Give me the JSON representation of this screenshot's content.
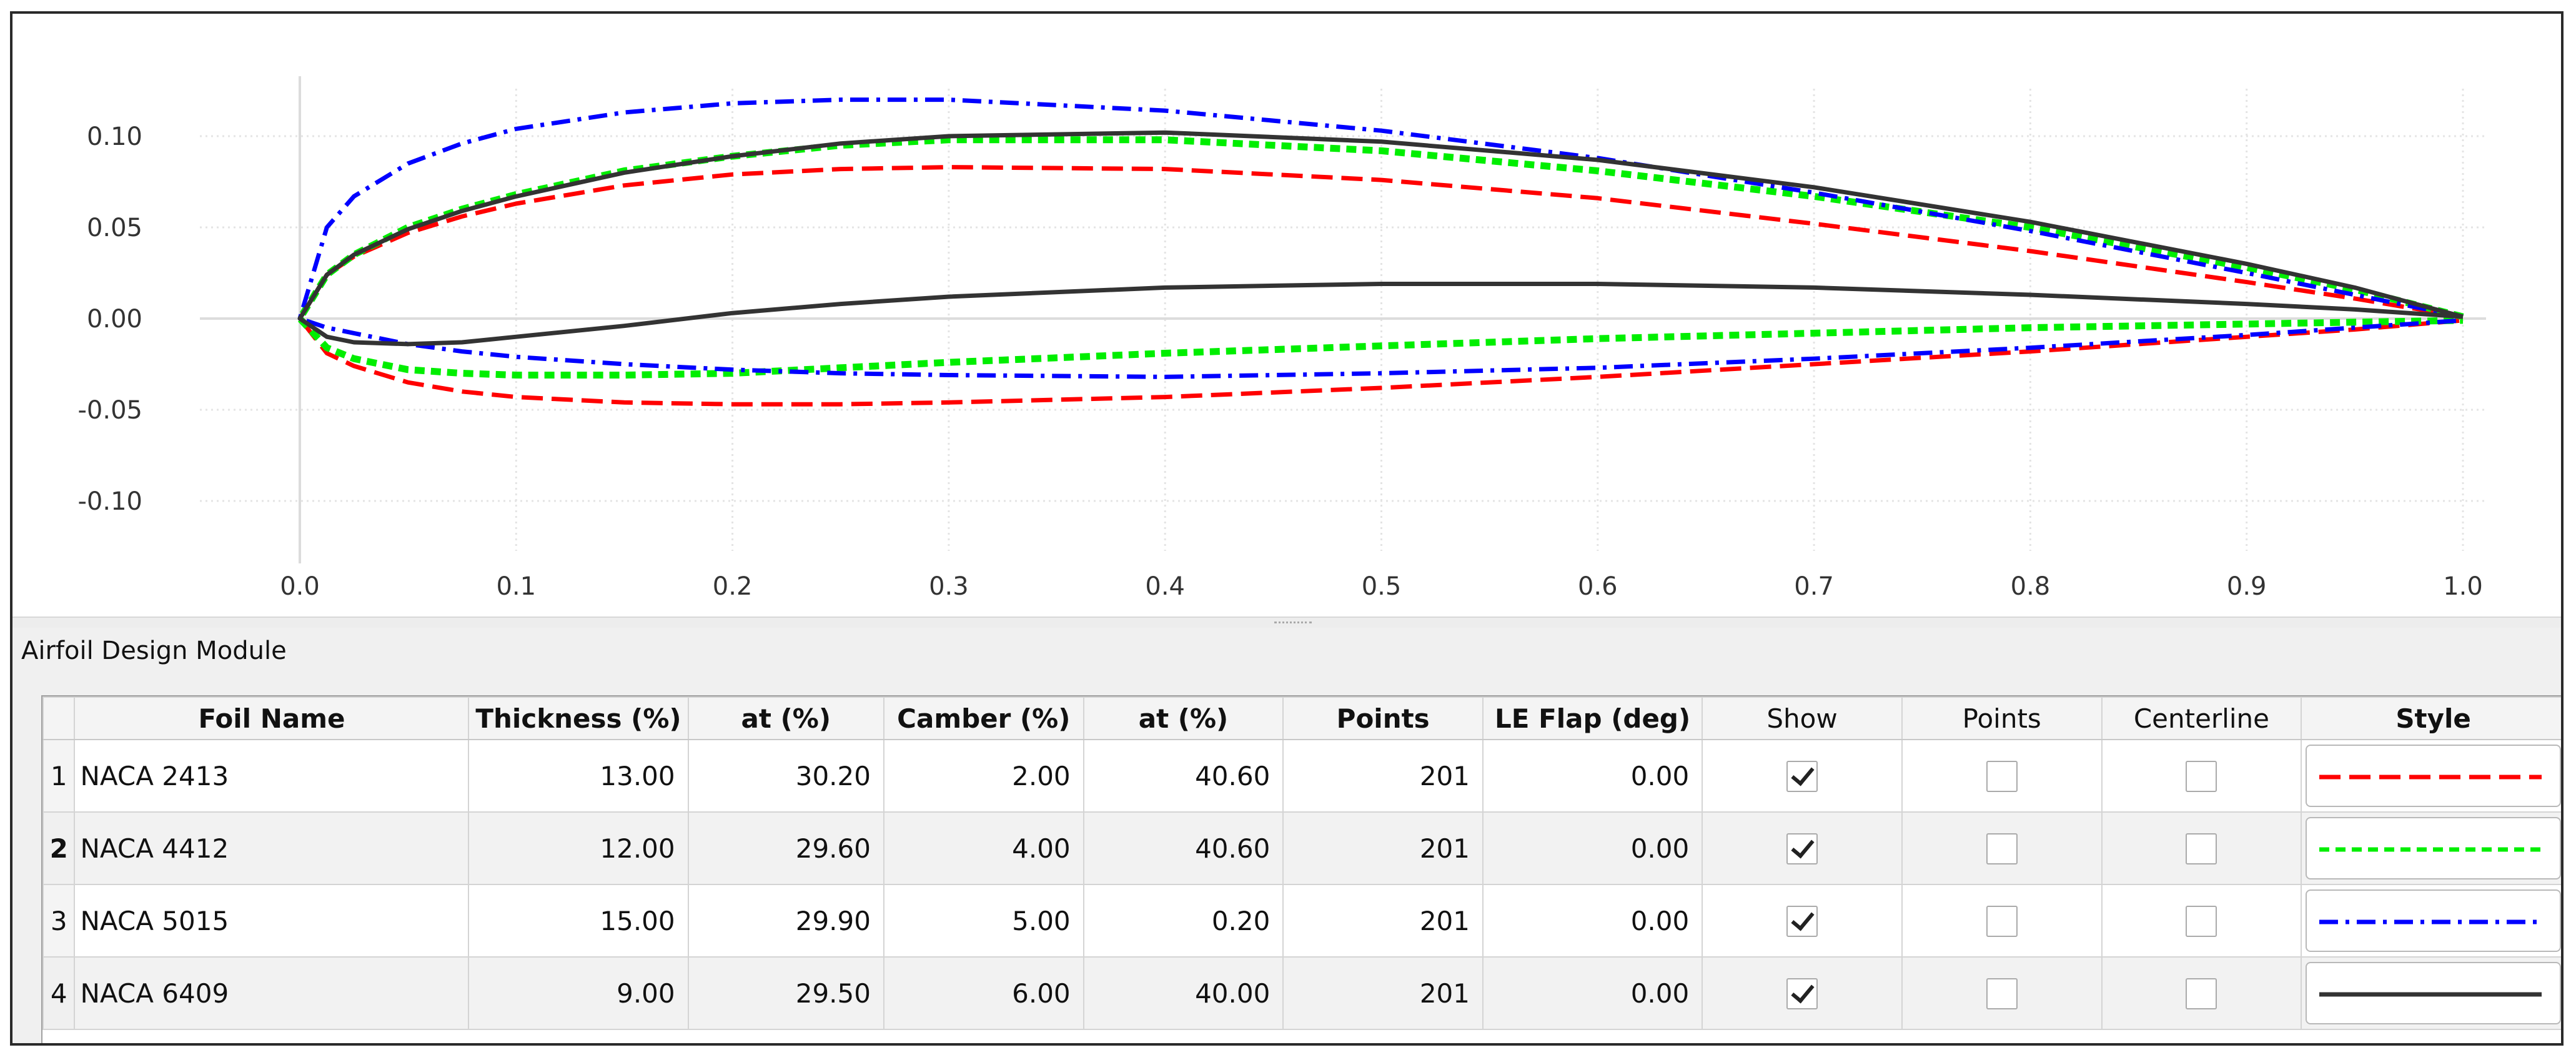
{
  "plot": {
    "x_ticks": [
      "0.0",
      "0.1",
      "0.2",
      "0.3",
      "0.4",
      "0.5",
      "0.6",
      "0.7",
      "0.8",
      "0.9",
      "1.0"
    ],
    "y_ticks": [
      "0.10",
      "0.05",
      "0.00",
      "-0.05",
      "-0.10"
    ],
    "grid": true,
    "xlim": [
      0,
      1
    ],
    "ylim": [
      -0.15,
      0.15
    ]
  },
  "module": {
    "title": "Airfoil Design Module"
  },
  "table": {
    "headers": {
      "foil_name": "Foil Name",
      "thickness": "Thickness (%)",
      "thickness_at": "at (%)",
      "camber": "Camber (%)",
      "camber_at": "at (%)",
      "points": "Points",
      "le_flap": "LE Flap (deg)",
      "show": "Show",
      "show_points": "Points",
      "centerline": "Centerline",
      "style": "Style"
    },
    "rows": [
      {
        "index": "1",
        "name": "NACA 2413",
        "thickness": "13.00",
        "thickness_at": "30.20",
        "camber": "2.00",
        "camber_at": "40.60",
        "points": "201",
        "le_flap": "0.00",
        "show": true,
        "show_points": false,
        "centerline": false,
        "style_color": "#ff0000",
        "style_dash": "long-dash"
      },
      {
        "index": "2",
        "name": "NACA 4412",
        "thickness": "12.00",
        "thickness_at": "29.60",
        "camber": "4.00",
        "camber_at": "40.60",
        "points": "201",
        "le_flap": "0.00",
        "show": true,
        "show_points": false,
        "centerline": false,
        "style_color": "#00ee00",
        "style_dash": "dash"
      },
      {
        "index": "3",
        "name": "NACA 5015",
        "thickness": "15.00",
        "thickness_at": "29.90",
        "camber": "5.00",
        "camber_at": "0.20",
        "points": "201",
        "le_flap": "0.00",
        "show": true,
        "show_points": false,
        "centerline": false,
        "style_color": "#0000ff",
        "style_dash": "dash-dot"
      },
      {
        "index": "4",
        "name": "NACA 6409",
        "thickness": "9.00",
        "thickness_at": "29.50",
        "camber": "6.00",
        "camber_at": "40.00",
        "points": "201",
        "le_flap": "0.00",
        "show": true,
        "show_points": false,
        "centerline": false,
        "style_color": "#333333",
        "style_dash": "solid"
      }
    ]
  },
  "chart_data": {
    "type": "line",
    "x": [
      0,
      0.0125,
      0.025,
      0.05,
      0.075,
      0.1,
      0.15,
      0.2,
      0.25,
      0.3,
      0.4,
      0.5,
      0.6,
      0.7,
      0.8,
      0.9,
      0.95,
      1.0
    ],
    "series": [
      {
        "name": "NACA 2413",
        "upper": [
          0,
          0.024,
          0.034,
          0.047,
          0.056,
          0.063,
          0.073,
          0.079,
          0.082,
          0.083,
          0.082,
          0.076,
          0.066,
          0.052,
          0.037,
          0.02,
          0.011,
          0.001
        ],
        "lower": [
          0,
          -0.019,
          -0.026,
          -0.035,
          -0.04,
          -0.043,
          -0.046,
          -0.047,
          -0.047,
          -0.046,
          -0.043,
          -0.038,
          -0.032,
          -0.025,
          -0.018,
          -0.01,
          -0.006,
          -0.001
        ]
      },
      {
        "name": "NACA 4412",
        "upper": [
          0,
          0.024,
          0.035,
          0.05,
          0.06,
          0.068,
          0.081,
          0.089,
          0.095,
          0.098,
          0.098,
          0.092,
          0.081,
          0.067,
          0.05,
          0.028,
          0.016,
          0.001
        ],
        "lower": [
          0,
          -0.016,
          -0.022,
          -0.028,
          -0.03,
          -0.031,
          -0.031,
          -0.03,
          -0.027,
          -0.024,
          -0.019,
          -0.015,
          -0.011,
          -0.008,
          -0.005,
          -0.003,
          -0.002,
          -0.001
        ]
      },
      {
        "name": "NACA 5015",
        "upper": [
          0,
          0.05,
          0.067,
          0.085,
          0.096,
          0.104,
          0.113,
          0.118,
          0.12,
          0.12,
          0.114,
          0.103,
          0.088,
          0.069,
          0.048,
          0.025,
          0.013,
          0.001
        ],
        "lower": [
          0,
          -0.005,
          -0.008,
          -0.014,
          -0.018,
          -0.021,
          -0.025,
          -0.028,
          -0.03,
          -0.031,
          -0.032,
          -0.03,
          -0.027,
          -0.022,
          -0.016,
          -0.009,
          -0.005,
          -0.001
        ]
      },
      {
        "name": "NACA 6409",
        "upper": [
          0,
          0.024,
          0.035,
          0.049,
          0.059,
          0.067,
          0.08,
          0.089,
          0.096,
          0.1,
          0.102,
          0.097,
          0.087,
          0.072,
          0.053,
          0.03,
          0.017,
          0.001
        ],
        "lower": [
          0,
          -0.01,
          -0.013,
          -0.014,
          -0.013,
          -0.01,
          -0.004,
          0.003,
          0.008,
          0.012,
          0.017,
          0.019,
          0.019,
          0.017,
          0.013,
          0.008,
          0.005,
          0.001
        ]
      }
    ]
  }
}
